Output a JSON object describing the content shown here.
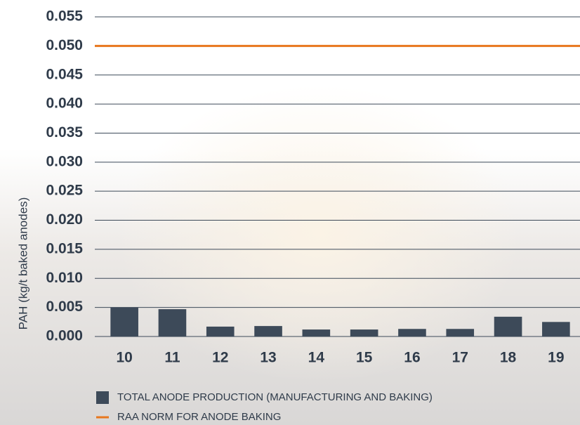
{
  "chart_data": {
    "type": "bar",
    "y_label": "PAH (kg/t baked anodes)",
    "categories": [
      "10",
      "11",
      "12",
      "13",
      "14",
      "15",
      "16",
      "17",
      "18",
      "19"
    ],
    "series": [
      {
        "name": "TOTAL ANODE PRODUCTION (MANUFACTURING AND BAKING)",
        "color": "#3d4a59",
        "values": [
          0.005,
          0.0047,
          0.0017,
          0.0018,
          0.0012,
          0.0012,
          0.0013,
          0.0013,
          0.0034,
          0.0025
        ]
      }
    ],
    "reference_line": {
      "name": "RAA NORM FOR ANODE BAKING",
      "value": 0.05,
      "color": "#e8771e"
    },
    "ylim": [
      0,
      0.055
    ],
    "yticks": [
      {
        "value": 0,
        "label": "0.000"
      },
      0.005,
      {
        "value": 0.01,
        "label": "0.010"
      },
      0.015,
      {
        "value": 0.02,
        "label": "0.020"
      },
      0.025,
      {
        "value": 0.03,
        "label": "0.030"
      },
      0.035,
      {
        "value": 0.04,
        "label": "0.040"
      },
      0.045,
      {
        "value": 0.05,
        "label": "0.050"
      },
      0.055
    ],
    "grid": true
  }
}
